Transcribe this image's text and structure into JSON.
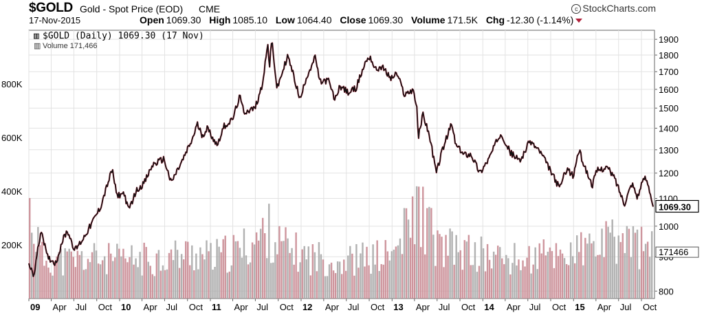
{
  "header": {
    "symbol": "$GOLD",
    "description": "Gold - Spot Price (EOD)",
    "exchange": "CME",
    "brand": "StockCharts.com",
    "date": "17-Nov-2015",
    "stats": [
      {
        "label": "Open",
        "value": "1069.30"
      },
      {
        "label": "High",
        "value": "1085.10"
      },
      {
        "label": "Low",
        "value": "1064.40"
      },
      {
        "label": "Close",
        "value": "1069.30"
      },
      {
        "label": "Volume",
        "value": "171.5K"
      },
      {
        "label": "Chg",
        "value": "-12.30 (-1.14%)"
      }
    ]
  },
  "legend": {
    "price": "$GOLD (Daily) 1069.30 (17 Nov)",
    "volume": "Volume 171,466"
  },
  "chart_data": {
    "type": "line",
    "price_scale": "log",
    "price_ylim": [
      780,
      1960
    ],
    "price_ticks": [
      800,
      900,
      1000,
      1100,
      1200,
      1300,
      1400,
      1500,
      1600,
      1700,
      1800,
      1900
    ],
    "price_tick_labels": [
      "800",
      "900",
      "1000",
      "1100",
      "1200",
      "1300",
      "1400",
      "1500",
      "1600",
      "1700",
      "1800",
      "1900"
    ],
    "volume_ylim": [
      0,
      1000000
    ],
    "volume_ticks": [
      200000,
      400000,
      600000,
      800000
    ],
    "volume_tick_labels": [
      "200K",
      "400K",
      "600K",
      "800K"
    ],
    "last_price_label": "1069.30",
    "last_volume_label": "171466",
    "x_start": "2009-01-01",
    "x_end": "2015-11-17",
    "x_ticks": [
      {
        "date": "2009-01-01",
        "label": "09",
        "bold": true
      },
      {
        "date": "2009-04-01",
        "label": "Apr",
        "bold": false
      },
      {
        "date": "2009-07-01",
        "label": "Jul",
        "bold": false
      },
      {
        "date": "2009-10-01",
        "label": "Oct",
        "bold": false
      },
      {
        "date": "2010-01-01",
        "label": "10",
        "bold": true
      },
      {
        "date": "2010-04-01",
        "label": "Apr",
        "bold": false
      },
      {
        "date": "2010-07-01",
        "label": "Jul",
        "bold": false
      },
      {
        "date": "2010-10-01",
        "label": "Oct",
        "bold": false
      },
      {
        "date": "2011-01-01",
        "label": "11",
        "bold": true
      },
      {
        "date": "2011-04-01",
        "label": "Apr",
        "bold": false
      },
      {
        "date": "2011-07-01",
        "label": "Jul",
        "bold": false
      },
      {
        "date": "2011-10-01",
        "label": "Oct",
        "bold": false
      },
      {
        "date": "2012-01-01",
        "label": "12",
        "bold": true
      },
      {
        "date": "2012-04-01",
        "label": "Apr",
        "bold": false
      },
      {
        "date": "2012-07-01",
        "label": "Jul",
        "bold": false
      },
      {
        "date": "2012-10-01",
        "label": "Oct",
        "bold": false
      },
      {
        "date": "2013-01-01",
        "label": "13",
        "bold": true
      },
      {
        "date": "2013-04-01",
        "label": "Apr",
        "bold": false
      },
      {
        "date": "2013-07-01",
        "label": "Jul",
        "bold": false
      },
      {
        "date": "2013-10-01",
        "label": "Oct",
        "bold": false
      },
      {
        "date": "2014-01-01",
        "label": "14",
        "bold": true
      },
      {
        "date": "2014-04-01",
        "label": "Apr",
        "bold": false
      },
      {
        "date": "2014-07-01",
        "label": "Jul",
        "bold": false
      },
      {
        "date": "2014-10-01",
        "label": "Oct",
        "bold": false
      },
      {
        "date": "2015-01-01",
        "label": "15",
        "bold": true
      },
      {
        "date": "2015-04-01",
        "label": "Apr",
        "bold": false
      },
      {
        "date": "2015-07-01",
        "label": "Jul",
        "bold": false
      },
      {
        "date": "2015-10-01",
        "label": "Oct",
        "bold": false
      }
    ],
    "price_series": [
      [
        "2009-01-01",
        880
      ],
      [
        "2009-01-20",
        840
      ],
      [
        "2009-02-20",
        990
      ],
      [
        "2009-03-15",
        900
      ],
      [
        "2009-04-20",
        880
      ],
      [
        "2009-05-15",
        950
      ],
      [
        "2009-06-05",
        985
      ],
      [
        "2009-07-05",
        920
      ],
      [
        "2009-08-05",
        955
      ],
      [
        "2009-09-05",
        1000
      ],
      [
        "2009-10-15",
        1065
      ],
      [
        "2009-12-03",
        1215
      ],
      [
        "2009-12-20",
        1110
      ],
      [
        "2010-01-20",
        1120
      ],
      [
        "2010-02-05",
        1055
      ],
      [
        "2010-03-10",
        1130
      ],
      [
        "2010-04-10",
        1160
      ],
      [
        "2010-05-15",
        1235
      ],
      [
        "2010-06-28",
        1260
      ],
      [
        "2010-07-27",
        1160
      ],
      [
        "2010-09-10",
        1250
      ],
      [
        "2010-10-20",
        1345
      ],
      [
        "2010-11-09",
        1420
      ],
      [
        "2010-11-30",
        1365
      ],
      [
        "2010-12-20",
        1400
      ],
      [
        "2011-01-28",
        1320
      ],
      [
        "2011-02-25",
        1410
      ],
      [
        "2011-03-31",
        1440
      ],
      [
        "2011-04-29",
        1560
      ],
      [
        "2011-05-16",
        1480
      ],
      [
        "2011-06-30",
        1500
      ],
      [
        "2011-07-28",
        1620
      ],
      [
        "2011-08-22",
        1880
      ],
      [
        "2011-08-26",
        1700
      ],
      [
        "2011-09-05",
        1895
      ],
      [
        "2011-09-26",
        1600
      ],
      [
        "2011-10-14",
        1680
      ],
      [
        "2011-11-08",
        1795
      ],
      [
        "2011-12-29",
        1540
      ],
      [
        "2012-01-20",
        1660
      ],
      [
        "2012-02-28",
        1790
      ],
      [
        "2012-03-15",
        1640
      ],
      [
        "2012-04-20",
        1650
      ],
      [
        "2012-05-16",
        1540
      ],
      [
        "2012-06-05",
        1620
      ],
      [
        "2012-07-10",
        1580
      ],
      [
        "2012-08-10",
        1610
      ],
      [
        "2012-09-20",
        1770
      ],
      [
        "2012-10-05",
        1790
      ],
      [
        "2012-10-26",
        1710
      ],
      [
        "2012-11-20",
        1730
      ],
      [
        "2012-12-28",
        1660
      ],
      [
        "2013-01-20",
        1690
      ],
      [
        "2013-02-20",
        1570
      ],
      [
        "2013-03-28",
        1600
      ],
      [
        "2013-04-12",
        1480
      ],
      [
        "2013-04-16",
        1350
      ],
      [
        "2013-05-05",
        1470
      ],
      [
        "2013-05-28",
        1380
      ],
      [
        "2013-06-28",
        1200
      ],
      [
        "2013-07-20",
        1290
      ],
      [
        "2013-08-28",
        1420
      ],
      [
        "2013-09-15",
        1320
      ],
      [
        "2013-10-15",
        1280
      ],
      [
        "2013-11-15",
        1280
      ],
      [
        "2013-12-20",
        1200
      ],
      [
        "2014-01-25",
        1260
      ],
      [
        "2014-03-15",
        1380
      ],
      [
        "2014-04-20",
        1290
      ],
      [
        "2014-05-30",
        1250
      ],
      [
        "2014-07-10",
        1340
      ],
      [
        "2014-08-20",
        1290
      ],
      [
        "2014-09-30",
        1210
      ],
      [
        "2014-11-05",
        1140
      ],
      [
        "2014-12-05",
        1220
      ],
      [
        "2014-12-31",
        1185
      ],
      [
        "2015-01-22",
        1300
      ],
      [
        "2015-02-15",
        1225
      ],
      [
        "2015-03-17",
        1150
      ],
      [
        "2015-04-05",
        1210
      ],
      [
        "2015-05-15",
        1225
      ],
      [
        "2015-06-15",
        1180
      ],
      [
        "2015-07-24",
        1080
      ],
      [
        "2015-08-24",
        1160
      ],
      [
        "2015-09-15",
        1105
      ],
      [
        "2015-10-14",
        1185
      ],
      [
        "2015-10-28",
        1160
      ],
      [
        "2015-11-17",
        1069.3
      ]
    ],
    "volume_series": [
      [
        "2009-01-01",
        330000
      ],
      [
        "2009-02-20",
        150000
      ],
      [
        "2009-06-01",
        140000
      ],
      [
        "2009-10-01",
        150000
      ],
      [
        "2010-01-01",
        140000
      ],
      [
        "2010-06-01",
        150000
      ],
      [
        "2010-11-01",
        170000
      ],
      [
        "2011-01-01",
        150000
      ],
      [
        "2011-05-01",
        180000
      ],
      [
        "2011-08-20",
        250000
      ],
      [
        "2011-10-01",
        200000
      ],
      [
        "2012-01-01",
        160000
      ],
      [
        "2012-06-01",
        140000
      ],
      [
        "2012-10-01",
        150000
      ],
      [
        "2013-01-01",
        160000
      ],
      [
        "2013-04-15",
        340000
      ],
      [
        "2013-07-01",
        190000
      ],
      [
        "2014-01-01",
        160000
      ],
      [
        "2014-06-01",
        140000
      ],
      [
        "2014-11-01",
        170000
      ],
      [
        "2015-01-01",
        170000
      ],
      [
        "2015-07-24",
        220000
      ],
      [
        "2015-11-17",
        171466
      ]
    ]
  }
}
